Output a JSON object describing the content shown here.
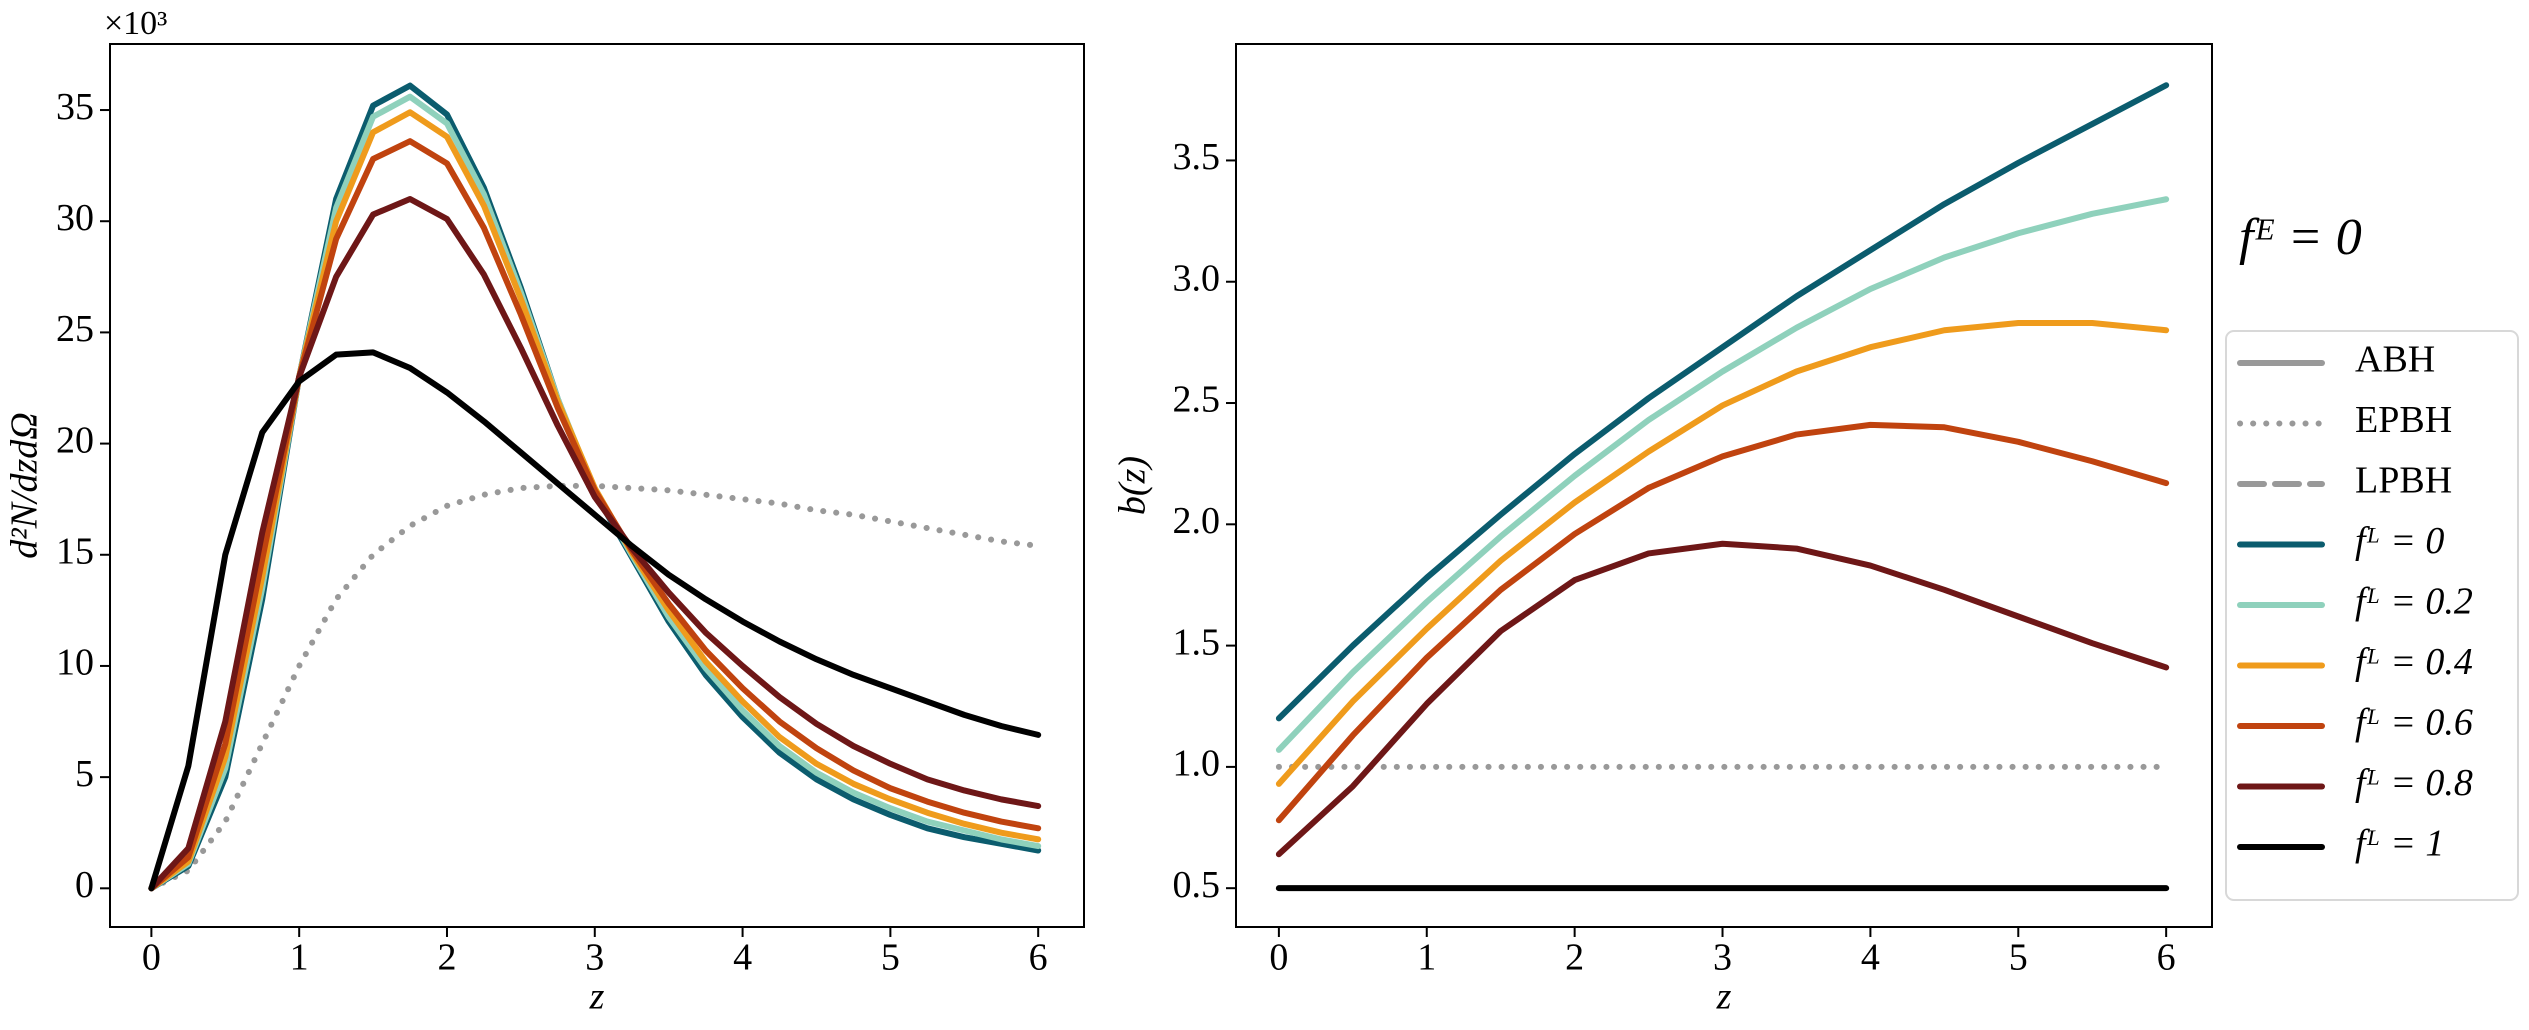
{
  "chart_data": [
    {
      "type": "line",
      "xlabel": "z",
      "ylabel": "d²N/dzdΩ",
      "y_scale_label": "×10³",
      "xlim": [
        -0.28,
        6.31
      ],
      "ylim": [
        -1.74,
        37.97
      ],
      "xticks": [
        0,
        1,
        2,
        3,
        4,
        5,
        6
      ],
      "yticks": [
        0,
        5,
        10,
        15,
        20,
        25,
        30,
        35
      ],
      "x": [
        0,
        0.25,
        0.5,
        0.75,
        1,
        1.25,
        1.5,
        1.75,
        2,
        2.25,
        2.5,
        2.75,
        3,
        3.25,
        3.5,
        3.75,
        4,
        4.25,
        4.5,
        4.75,
        5,
        5.25,
        5.5,
        5.75,
        6
      ],
      "series": [
        {
          "name": "EPBH",
          "color": "#999999",
          "style": "dotted",
          "values": [
            0,
            0.8,
            3,
            6.5,
            10,
            13,
            15,
            16.3,
            17.2,
            17.7,
            18,
            18.1,
            18.1,
            18,
            17.9,
            17.7,
            17.5,
            17.3,
            17,
            16.8,
            16.5,
            16.2,
            15.9,
            15.6,
            15.4
          ]
        },
        {
          "name": "fᴸ = 0",
          "color": "#0b5c6e",
          "style": "solid",
          "values": [
            0,
            1,
            5,
            13,
            23,
            31,
            35.2,
            36.1,
            34.8,
            31.5,
            27,
            22,
            17.8,
            14.9,
            12,
            9.6,
            7.7,
            6.1,
            4.9,
            4,
            3.3,
            2.7,
            2.3,
            2,
            1.7
          ]
        },
        {
          "name": "fᴸ = 0.2",
          "color": "#8fd1bc",
          "style": "solid",
          "values": [
            0,
            1.1,
            5.4,
            13.5,
            23,
            30.6,
            34.7,
            35.6,
            34.4,
            31.2,
            26.8,
            22,
            17.9,
            15,
            12.2,
            9.9,
            8,
            6.4,
            5.2,
            4.3,
            3.6,
            3,
            2.6,
            2.2,
            1.9
          ]
        },
        {
          "name": "fᴸ = 0.4",
          "color": "#ef9b1c",
          "style": "solid",
          "values": [
            0,
            1.2,
            5.9,
            14,
            23,
            30,
            34,
            34.9,
            33.8,
            30.7,
            26.5,
            21.9,
            18,
            15.1,
            12.5,
            10.2,
            8.4,
            6.8,
            5.6,
            4.7,
            4,
            3.4,
            2.9,
            2.5,
            2.2
          ]
        },
        {
          "name": "fᴸ = 0.6",
          "color": "#c0430f",
          "style": "solid",
          "values": [
            0,
            1.4,
            6.5,
            14.8,
            23,
            29.2,
            32.8,
            33.6,
            32.6,
            29.7,
            25.8,
            21.6,
            17.9,
            15.2,
            12.8,
            10.7,
            9,
            7.5,
            6.3,
            5.3,
            4.5,
            3.9,
            3.4,
            3,
            2.7
          ]
        },
        {
          "name": "fᴸ = 0.8",
          "color": "#6e1717",
          "style": "solid",
          "values": [
            0,
            1.8,
            7.5,
            16,
            23,
            27.5,
            30.3,
            31,
            30.1,
            27.6,
            24.3,
            20.8,
            17.6,
            15.3,
            13.3,
            11.5,
            10,
            8.6,
            7.4,
            6.4,
            5.6,
            4.9,
            4.4,
            4,
            3.7
          ]
        },
        {
          "name": "fᴸ = 1",
          "color": "#000000",
          "style": "solid",
          "values": [
            0,
            5.5,
            15,
            20.5,
            22.8,
            24,
            24.1,
            23.4,
            22.3,
            21,
            19.6,
            18.2,
            16.8,
            15.4,
            14.1,
            13,
            12,
            11.1,
            10.3,
            9.6,
            9,
            8.4,
            7.8,
            7.3,
            6.9
          ]
        }
      ]
    },
    {
      "type": "line",
      "xlabel": "z",
      "ylabel": "b(z)",
      "xlim": [
        -0.29,
        6.31
      ],
      "ylim": [
        0.34,
        3.98
      ],
      "xticks": [
        0,
        1,
        2,
        3,
        4,
        5,
        6
      ],
      "yticks": [
        0.5,
        {
          "value": 1,
          "label": "1.0"
        },
        1.5,
        {
          "value": 2,
          "label": "2.0"
        },
        2.5,
        {
          "value": 3,
          "label": "3.0"
        },
        3.5
      ],
      "x": [
        0,
        0.5,
        1,
        1.5,
        2,
        2.5,
        3,
        3.5,
        4,
        4.5,
        5,
        5.5,
        6
      ],
      "series": [
        {
          "color": "#999999",
          "style": "dotted",
          "values": [
            1,
            1,
            1,
            1,
            1,
            1,
            1,
            1,
            1,
            1,
            1,
            1,
            1
          ]
        },
        {
          "color": "#0b5c6e",
          "style": "solid",
          "values": [
            1.2,
            1.5,
            1.78,
            2.04,
            2.29,
            2.52,
            2.73,
            2.94,
            3.13,
            3.32,
            3.49,
            3.65,
            3.81
          ]
        },
        {
          "color": "#8fd1bc",
          "style": "solid",
          "values": [
            1.07,
            1.39,
            1.68,
            1.95,
            2.2,
            2.43,
            2.63,
            2.81,
            2.97,
            3.1,
            3.2,
            3.28,
            3.34
          ]
        },
        {
          "color": "#ef9b1c",
          "style": "solid",
          "values": [
            0.93,
            1.27,
            1.57,
            1.85,
            2.09,
            2.3,
            2.49,
            2.63,
            2.73,
            2.8,
            2.83,
            2.83,
            2.8
          ]
        },
        {
          "color": "#c0430f",
          "style": "solid",
          "values": [
            0.78,
            1.13,
            1.45,
            1.73,
            1.96,
            2.15,
            2.28,
            2.37,
            2.41,
            2.4,
            2.34,
            2.26,
            2.17
          ]
        },
        {
          "color": "#6e1717",
          "style": "solid",
          "values": [
            0.64,
            0.92,
            1.26,
            1.56,
            1.77,
            1.88,
            1.92,
            1.9,
            1.83,
            1.73,
            1.62,
            1.51,
            1.41
          ]
        },
        {
          "color": "#000000",
          "style": "solid",
          "values": [
            0.5,
            0.5,
            0.5,
            0.5,
            0.5,
            0.5,
            0.5,
            0.5,
            0.5,
            0.5,
            0.5,
            0.5,
            0.5
          ]
        }
      ]
    }
  ],
  "legend": {
    "title": "fᴱ = 0",
    "extra_entries": [
      {
        "name": "ABH",
        "color": "#999999",
        "style": "solid"
      },
      {
        "name": "LPBH",
        "color": "#999999",
        "style": "dashed"
      }
    ]
  }
}
